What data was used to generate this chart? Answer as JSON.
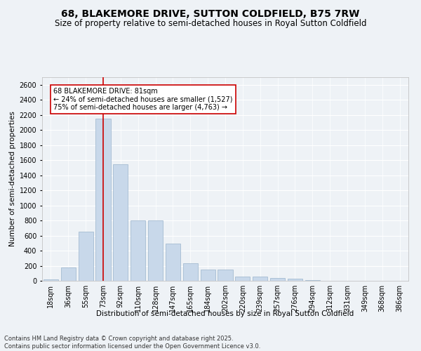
{
  "title": "68, BLAKEMORE DRIVE, SUTTON COLDFIELD, B75 7RW",
  "subtitle": "Size of property relative to semi-detached houses in Royal Sutton Coldfield",
  "xlabel": "Distribution of semi-detached houses by size in Royal Sutton Coldfield",
  "ylabel": "Number of semi-detached properties",
  "footnote": "Contains HM Land Registry data © Crown copyright and database right 2025.\nContains public sector information licensed under the Open Government Licence v3.0.",
  "categories": [
    "18sqm",
    "36sqm",
    "55sqm",
    "73sqm",
    "92sqm",
    "110sqm",
    "128sqm",
    "147sqm",
    "165sqm",
    "184sqm",
    "202sqm",
    "220sqm",
    "239sqm",
    "257sqm",
    "276sqm",
    "294sqm",
    "312sqm",
    "331sqm",
    "349sqm",
    "368sqm",
    "386sqm"
  ],
  "values": [
    20,
    175,
    650,
    2150,
    1550,
    800,
    800,
    490,
    230,
    150,
    150,
    55,
    55,
    35,
    25,
    10,
    4,
    0,
    4,
    0,
    4
  ],
  "bar_color": "#c8d8ea",
  "bar_edge_color": "#9ab4cc",
  "vline_x_index": 3,
  "vline_color": "#cc0000",
  "annotation_text": "68 BLAKEMORE DRIVE: 81sqm\n← 24% of semi-detached houses are smaller (1,527)\n75% of semi-detached houses are larger (4,763) →",
  "annotation_box_color": "#ffffff",
  "annotation_box_edge": "#cc0000",
  "ylim": [
    0,
    2700
  ],
  "yticks": [
    0,
    200,
    400,
    600,
    800,
    1000,
    1200,
    1400,
    1600,
    1800,
    2000,
    2200,
    2400,
    2600
  ],
  "bg_color": "#eef2f6",
  "grid_color": "#ffffff",
  "title_fontsize": 10,
  "subtitle_fontsize": 8.5,
  "label_fontsize": 7.5,
  "tick_fontsize": 7,
  "footnote_fontsize": 6
}
